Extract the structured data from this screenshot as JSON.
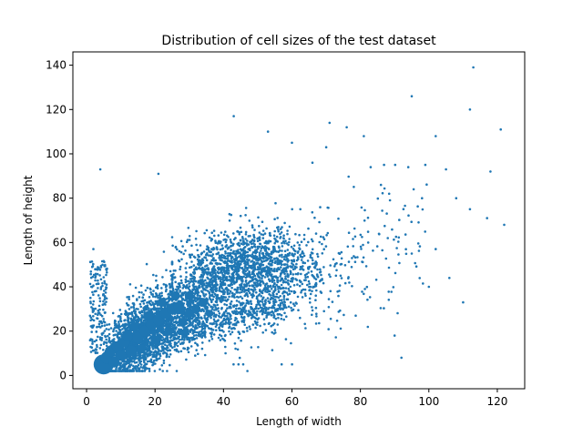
{
  "chart_data": {
    "type": "scatter",
    "title": "Distribution of cell sizes of the test dataset",
    "xlabel": "Length of width",
    "ylabel": "Length of height",
    "xlim": [
      -4,
      128
    ],
    "ylim": [
      -6,
      146
    ],
    "xticks": [
      0,
      20,
      40,
      60,
      80,
      100,
      120
    ],
    "yticks": [
      0,
      20,
      40,
      60,
      80,
      100,
      120,
      140
    ],
    "grid": false,
    "point_color": "#1f77b4",
    "density_description": "dense cloud rising from near (5,5) to (60,50); sparse outliers up to (113,139)",
    "large_markers": [
      {
        "x": 5,
        "y": 5,
        "size": 11
      },
      {
        "x": 6,
        "y": 8,
        "size": 7
      },
      {
        "x": 7,
        "y": 11,
        "size": 6
      },
      {
        "x": 9,
        "y": 13,
        "size": 6
      },
      {
        "x": 11,
        "y": 15,
        "size": 6
      },
      {
        "x": 8,
        "y": 6,
        "size": 6
      },
      {
        "x": 10,
        "y": 9,
        "size": 6
      },
      {
        "x": 13,
        "y": 11,
        "size": 6
      },
      {
        "x": 12,
        "y": 18,
        "size": 6
      },
      {
        "x": 15,
        "y": 17,
        "size": 6
      },
      {
        "x": 17,
        "y": 20,
        "size": 6
      },
      {
        "x": 19,
        "y": 23,
        "size": 6
      },
      {
        "x": 21,
        "y": 25,
        "size": 6
      },
      {
        "x": 23,
        "y": 28,
        "size": 6
      },
      {
        "x": 25,
        "y": 30,
        "size": 6
      },
      {
        "x": 27,
        "y": 31,
        "size": 6
      },
      {
        "x": 16,
        "y": 12,
        "size": 5
      },
      {
        "x": 20,
        "y": 16,
        "size": 5
      },
      {
        "x": 24,
        "y": 20,
        "size": 5
      },
      {
        "x": 28,
        "y": 24,
        "size": 5
      },
      {
        "x": 30,
        "y": 28,
        "size": 5
      },
      {
        "x": 32,
        "y": 30,
        "size": 5
      },
      {
        "x": 14,
        "y": 22,
        "size": 5
      },
      {
        "x": 18,
        "y": 27,
        "size": 5
      },
      {
        "x": 22,
        "y": 33,
        "size": 5
      },
      {
        "x": 26,
        "y": 36,
        "size": 5
      },
      {
        "x": 30,
        "y": 36,
        "size": 5
      },
      {
        "x": 34,
        "y": 33,
        "size": 5
      },
      {
        "x": 36,
        "y": 28,
        "size": 4
      },
      {
        "x": 29,
        "y": 20,
        "size": 4
      }
    ],
    "outliers": [
      {
        "x": 113,
        "y": 139
      },
      {
        "x": 95,
        "y": 126
      },
      {
        "x": 112,
        "y": 120
      },
      {
        "x": 43,
        "y": 117
      },
      {
        "x": 71,
        "y": 114
      },
      {
        "x": 121,
        "y": 111
      },
      {
        "x": 53,
        "y": 110
      },
      {
        "x": 102,
        "y": 108
      },
      {
        "x": 60,
        "y": 105
      },
      {
        "x": 70,
        "y": 103
      },
      {
        "x": 4,
        "y": 93
      },
      {
        "x": 21,
        "y": 91
      },
      {
        "x": 83,
        "y": 94
      },
      {
        "x": 94,
        "y": 94
      },
      {
        "x": 105,
        "y": 93
      },
      {
        "x": 118,
        "y": 92
      },
      {
        "x": 98,
        "y": 80
      },
      {
        "x": 108,
        "y": 80
      },
      {
        "x": 112,
        "y": 75
      },
      {
        "x": 117,
        "y": 71
      },
      {
        "x": 122,
        "y": 68
      },
      {
        "x": 95,
        "y": 55
      },
      {
        "x": 106,
        "y": 44
      },
      {
        "x": 110,
        "y": 33
      },
      {
        "x": 100,
        "y": 40
      },
      {
        "x": 92,
        "y": 8
      },
      {
        "x": 2,
        "y": 57
      },
      {
        "x": 86,
        "y": 86
      },
      {
        "x": 88,
        "y": 62
      },
      {
        "x": 90,
        "y": 18
      },
      {
        "x": 47,
        "y": 2
      },
      {
        "x": 57,
        "y": 5
      },
      {
        "x": 76,
        "y": 112
      },
      {
        "x": 81,
        "y": 108
      },
      {
        "x": 66,
        "y": 96
      },
      {
        "x": 102,
        "y": 57
      }
    ]
  }
}
